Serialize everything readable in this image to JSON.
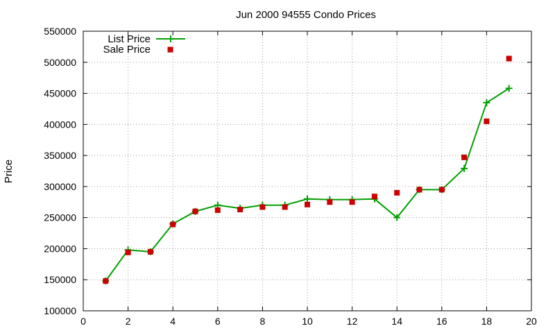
{
  "chart_data": {
    "type": "line",
    "title": "Jun 2000 94555 Condo Prices",
    "xlabel": "",
    "ylabel": "Price",
    "xlim": [
      0,
      20
    ],
    "ylim": [
      100000,
      550000
    ],
    "x_ticks": [
      0,
      2,
      4,
      6,
      8,
      10,
      12,
      14,
      16,
      18,
      20
    ],
    "y_ticks": [
      100000,
      150000,
      200000,
      250000,
      300000,
      350000,
      400000,
      450000,
      500000,
      550000
    ],
    "grid": true,
    "legend_position": "top-left",
    "series": [
      {
        "name": "List Price",
        "style": "line+cross",
        "color": "#00a000",
        "x": [
          1,
          2,
          3,
          4,
          5,
          6,
          7,
          8,
          9,
          10,
          11,
          12,
          13,
          14,
          15,
          16,
          17,
          18,
          19
        ],
        "y": [
          148000,
          198000,
          195000,
          240000,
          260000,
          270000,
          265000,
          270000,
          270000,
          280000,
          279000,
          279000,
          280000,
          250000,
          295000,
          295000,
          329000,
          435000,
          458000
        ]
      },
      {
        "name": "Sale Price",
        "style": "square-marker",
        "color": "#cc0000",
        "x": [
          1,
          2,
          3,
          4,
          5,
          6,
          7,
          8,
          9,
          10,
          11,
          12,
          13,
          14,
          15,
          16,
          17,
          18,
          19
        ],
        "y": [
          148000,
          194000,
          195000,
          239000,
          260000,
          262000,
          263000,
          267000,
          267000,
          271000,
          275000,
          275000,
          284000,
          290000,
          295000,
          295000,
          347000,
          405000,
          506000
        ]
      }
    ]
  }
}
